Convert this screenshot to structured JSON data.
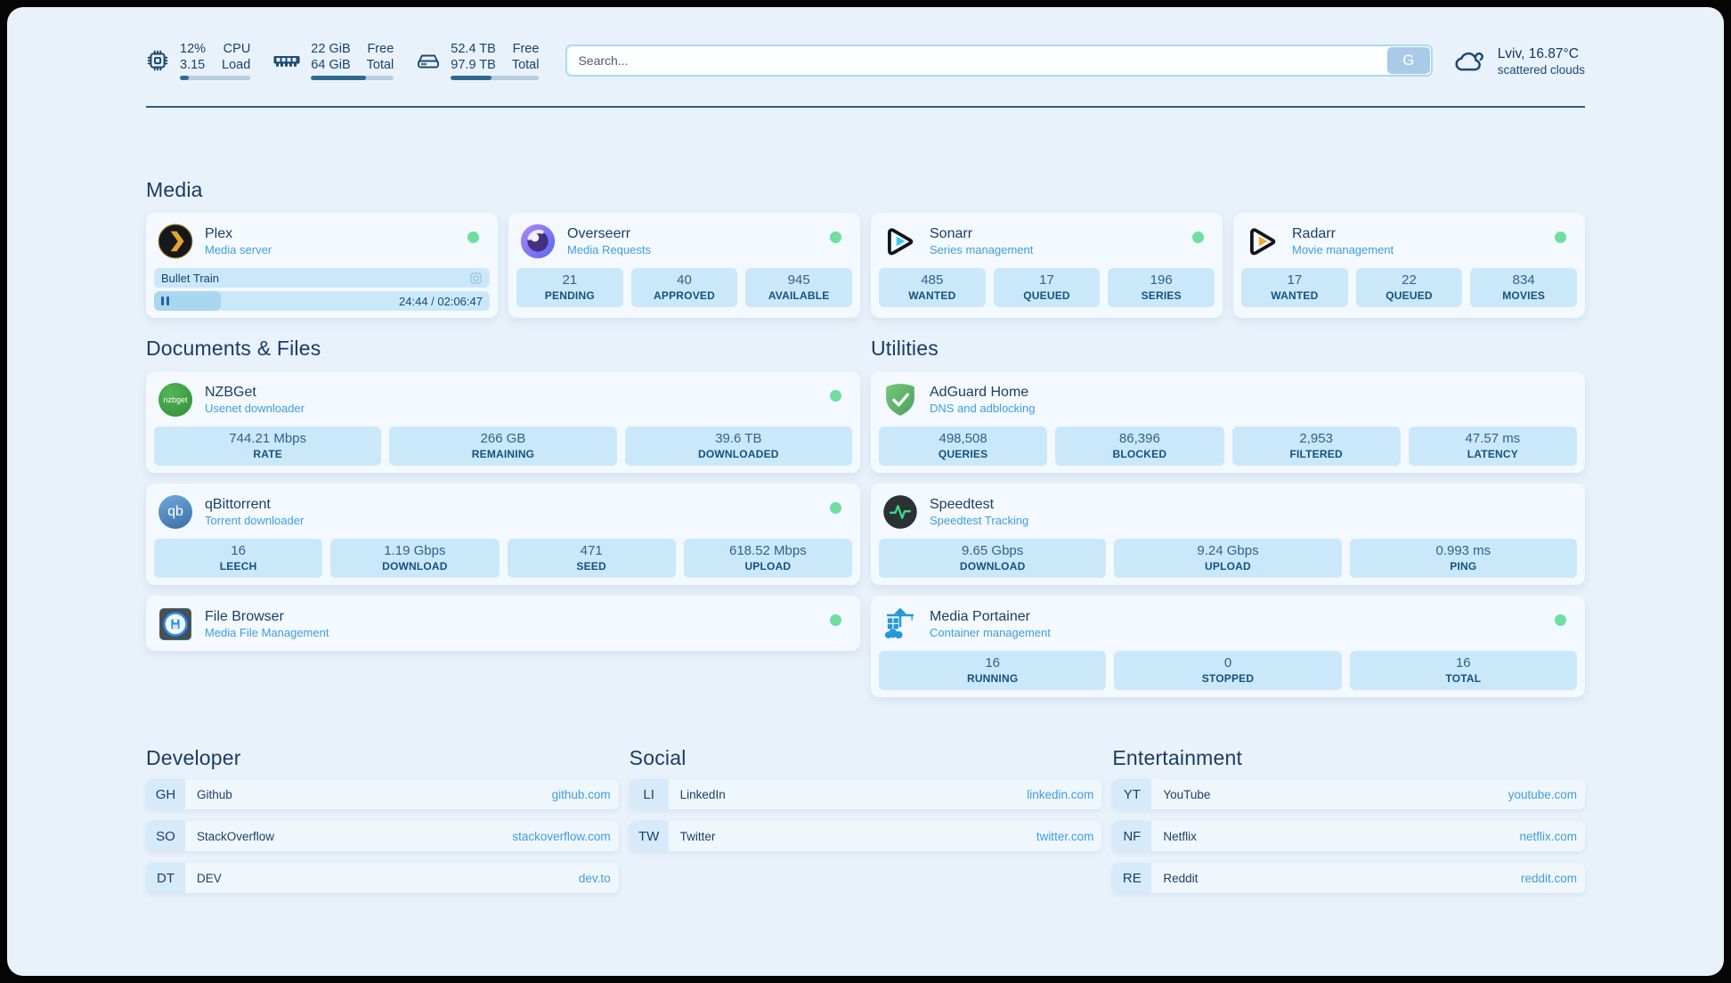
{
  "colors": {
    "accent_blue": "#3f9ddd",
    "status_online": "#6edf9f",
    "navy_text": "#1c3f66",
    "page_background": "#e9f2fb"
  },
  "topbar": {
    "cpu": {
      "value_top": "12%",
      "value_bottom": "3.15",
      "label_top": "CPU",
      "label_bottom": "Load",
      "progress_pct": 12
    },
    "ram": {
      "value_top": "22 GiB",
      "value_bottom": "64 GiB",
      "label_top": "Free",
      "label_bottom": "Total",
      "progress_pct": 66
    },
    "disk": {
      "value_top": "52.4 TB",
      "value_bottom": "97.9 TB",
      "label_top": "Free",
      "label_bottom": "Total",
      "progress_pct": 46
    },
    "search": {
      "placeholder": "Search...",
      "button_label": "G"
    },
    "weather": {
      "location": "Lviv, 16.87°C",
      "condition": "scattered clouds"
    }
  },
  "media": {
    "title": "Media",
    "plex": {
      "name": "Plex",
      "description": "Media server",
      "status": "online",
      "now_playing": "Bullet Train",
      "time": "24:44 / 02:06:47",
      "progress_pct": 20
    },
    "overseerr": {
      "name": "Overseerr",
      "description": "Media Requests",
      "status": "online",
      "stats": [
        {
          "value": "21",
          "label": "PENDING"
        },
        {
          "value": "40",
          "label": "APPROVED"
        },
        {
          "value": "945",
          "label": "AVAILABLE"
        }
      ]
    },
    "sonarr": {
      "name": "Sonarr",
      "description": "Series management",
      "status": "online",
      "stats": [
        {
          "value": "485",
          "label": "WANTED"
        },
        {
          "value": "17",
          "label": "QUEUED"
        },
        {
          "value": "196",
          "label": "SERIES"
        }
      ]
    },
    "radarr": {
      "name": "Radarr",
      "description": "Movie management",
      "status": "online",
      "stats": [
        {
          "value": "17",
          "label": "WANTED"
        },
        {
          "value": "22",
          "label": "QUEUED"
        },
        {
          "value": "834",
          "label": "MOVIES"
        }
      ]
    }
  },
  "documents": {
    "title": "Documents & Files",
    "nzbget": {
      "name": "NZBGet",
      "description": "Usenet downloader",
      "icon_text": "nzbget",
      "status": "online",
      "stats": [
        {
          "value": "744.21 Mbps",
          "label": "RATE"
        },
        {
          "value": "266 GB",
          "label": "REMAINING"
        },
        {
          "value": "39.6 TB",
          "label": "DOWNLOADED"
        }
      ]
    },
    "qbittorrent": {
      "name": "qBittorrent",
      "description": "Torrent downloader",
      "icon_text": "qb",
      "status": "online",
      "stats": [
        {
          "value": "16",
          "label": "LEECH"
        },
        {
          "value": "1.19 Gbps",
          "label": "DOWNLOAD"
        },
        {
          "value": "471",
          "label": "SEED"
        },
        {
          "value": "618.52 Mbps",
          "label": "UPLOAD"
        }
      ]
    },
    "filebrowser": {
      "name": "File Browser",
      "description": "Media File Management",
      "status": "online"
    }
  },
  "utilities": {
    "title": "Utilities",
    "adguard": {
      "name": "AdGuard Home",
      "description": "DNS and adblocking",
      "stats": [
        {
          "value": "498,508",
          "label": "QUERIES"
        },
        {
          "value": "86,396",
          "label": "BLOCKED"
        },
        {
          "value": "2,953",
          "label": "FILTERED"
        },
        {
          "value": "47.57 ms",
          "label": "LATENCY"
        }
      ]
    },
    "speedtest": {
      "name": "Speedtest",
      "description": "Speedtest Tracking",
      "stats": [
        {
          "value": "9.65 Gbps",
          "label": "DOWNLOAD"
        },
        {
          "value": "9.24 Gbps",
          "label": "UPLOAD"
        },
        {
          "value": "0.993 ms",
          "label": "PING"
        }
      ]
    },
    "portainer": {
      "name": "Media Portainer",
      "description": "Container management",
      "status": "online",
      "stats": [
        {
          "value": "16",
          "label": "RUNNING"
        },
        {
          "value": "0",
          "label": "STOPPED"
        },
        {
          "value": "16",
          "label": "TOTAL"
        }
      ]
    }
  },
  "bookmarks": {
    "developer": {
      "title": "Developer",
      "links": [
        {
          "abbr": "GH",
          "name": "Github",
          "url": "github.com"
        },
        {
          "abbr": "SO",
          "name": "StackOverflow",
          "url": "stackoverflow.com"
        },
        {
          "abbr": "DT",
          "name": "DEV",
          "url": "dev.to"
        }
      ]
    },
    "social": {
      "title": "Social",
      "links": [
        {
          "abbr": "LI",
          "name": "LinkedIn",
          "url": "linkedin.com"
        },
        {
          "abbr": "TW",
          "name": "Twitter",
          "url": "twitter.com"
        }
      ]
    },
    "entertainment": {
      "title": "Entertainment",
      "links": [
        {
          "abbr": "YT",
          "name": "YouTube",
          "url": "youtube.com"
        },
        {
          "abbr": "NF",
          "name": "Netflix",
          "url": "netflix.com"
        },
        {
          "abbr": "RE",
          "name": "Reddit",
          "url": "reddit.com"
        }
      ]
    }
  }
}
